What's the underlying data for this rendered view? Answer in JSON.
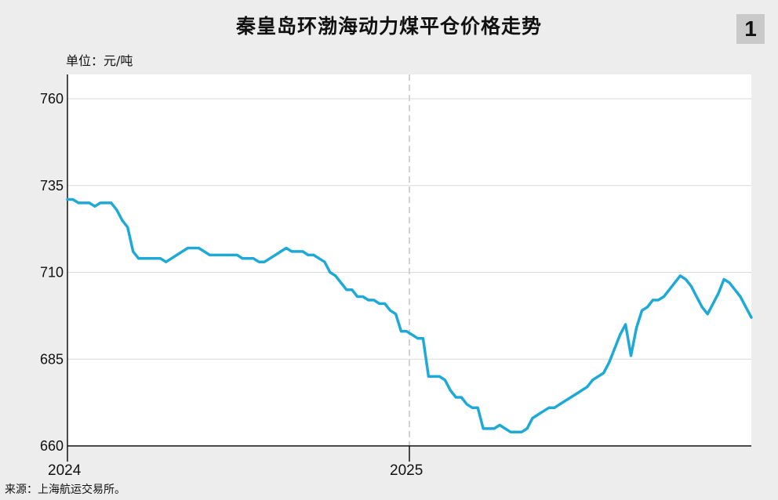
{
  "header": {
    "title": "秦皇岛环渤海动力煤平仓价格走势",
    "figure_number": "1",
    "unit_label": "单位：元/吨"
  },
  "footer": {
    "source": "来源：上海航运交易所。"
  },
  "colors": {
    "line": "#1fa9d6",
    "background": "#ededed",
    "plot_background": "#ffffff",
    "grid": "#d9d9d9"
  },
  "chart_data": {
    "type": "line",
    "title": "秦皇岛环渤海动力煤平仓价格走势",
    "ylabel": "单位：元/吨",
    "xlabel": "",
    "ylim": [
      660,
      767
    ],
    "yticks": [
      660,
      685,
      710,
      735,
      760
    ],
    "xticks": [
      "2024",
      "2025"
    ],
    "grid": true,
    "legend": "none",
    "series": [
      {
        "x": [
          0,
          1,
          2,
          3,
          4,
          5,
          6,
          7,
          8,
          9,
          10,
          11,
          12,
          13,
          14,
          15,
          16,
          17,
          18,
          19,
          20,
          21,
          22,
          23,
          24,
          25,
          26,
          27,
          28,
          29,
          30,
          31,
          32,
          33,
          34,
          35,
          36,
          37,
          38,
          39,
          40,
          41,
          42,
          43,
          44,
          45,
          46,
          47,
          48,
          49,
          50,
          51,
          52,
          53,
          54,
          55,
          56,
          57,
          58,
          59,
          60,
          61,
          62,
          63,
          64,
          65,
          66,
          67,
          68,
          69,
          70,
          71,
          72,
          73,
          74,
          75,
          76,
          77,
          78,
          79,
          80,
          81,
          82,
          83,
          84,
          85,
          86,
          87,
          88,
          89,
          90,
          91,
          92,
          93,
          94,
          95,
          96,
          97,
          98,
          99,
          100,
          101,
          102,
          103,
          104,
          105,
          106,
          107,
          108,
          109,
          110,
          111,
          112,
          113,
          114,
          115,
          116,
          117,
          118,
          119,
          120,
          121,
          122,
          123,
          124,
          125
        ],
        "values": [
          731,
          731,
          730,
          730,
          730,
          729,
          730,
          730,
          730,
          728,
          725,
          723,
          716,
          714,
          714,
          714,
          714,
          714,
          713,
          714,
          715,
          716,
          717,
          717,
          717,
          716,
          715,
          715,
          715,
          715,
          715,
          715,
          714,
          714,
          714,
          713,
          713,
          714,
          715,
          716,
          717,
          716,
          716,
          716,
          715,
          715,
          714,
          713,
          710,
          709,
          707,
          705,
          705,
          703,
          703,
          702,
          702,
          701,
          701,
          699,
          698,
          693,
          693,
          692,
          691,
          691,
          680,
          680,
          680,
          679,
          676,
          674,
          674,
          672,
          671,
          671,
          665,
          665,
          665,
          666,
          665,
          664,
          664,
          664,
          665,
          668,
          669,
          670,
          671,
          671,
          672,
          673,
          674,
          675,
          676,
          677,
          679,
          680,
          681,
          684,
          688,
          692,
          695,
          686,
          694,
          699,
          700,
          702,
          702,
          703,
          705,
          707,
          709,
          708,
          706,
          703,
          700,
          698,
          701,
          704,
          708,
          707,
          705,
          703,
          700,
          697
        ]
      }
    ],
    "start_label": "2024",
    "break_label": "2025"
  }
}
